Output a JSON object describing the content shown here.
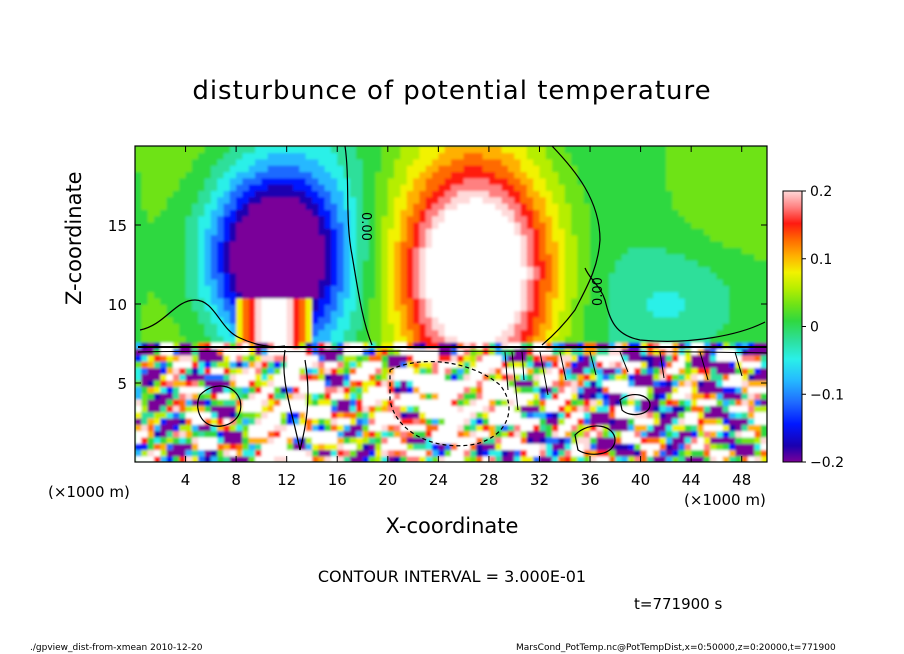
{
  "chart_data": {
    "type": "heatmap",
    "title": "disturbunce of potential temperature",
    "xlabel": "X-coordinate",
    "ylabel": "Z-coordinate",
    "x_unit_left": "(×1000 m)",
    "x_unit_right": "(×1000 m)",
    "x_ticks": [
      4,
      8,
      12,
      16,
      20,
      24,
      28,
      32,
      36,
      40,
      44,
      48
    ],
    "y_ticks": [
      5,
      10,
      15
    ],
    "xlim": [
      0,
      50
    ],
    "ylim": [
      0,
      20
    ],
    "colorbar": {
      "ticks": [
        "0.2",
        "0.1",
        "0",
        "−0.1",
        "−0.2"
      ],
      "tick_values": [
        0.2,
        0.1,
        0,
        -0.1,
        -0.2
      ],
      "range": [
        -0.2,
        0.2
      ]
    },
    "contour_labels": [
      "0.00",
      "0.00"
    ],
    "contour_interval": "CONTOUR INTERVAL = 3.000E-01",
    "time_label": "t=771900 s",
    "features": [
      {
        "kind": "cold",
        "x": 11,
        "z": 13,
        "amplitude": -0.24
      },
      {
        "kind": "warm",
        "x": 27,
        "z": 12,
        "amplitude": 0.24
      }
    ],
    "colors": [
      "#7a0099",
      "#1a00b0",
      "#0018ff",
      "#1f6bff",
      "#25b8ff",
      "#2af0e8",
      "#2ddf9a",
      "#2fd840",
      "#6ee317",
      "#b6ee00",
      "#f2f200",
      "#ffb000",
      "#ff6a00",
      "#ff1a10",
      "#ff8080",
      "#ffd9d9",
      "#ffffff"
    ]
  },
  "footer": {
    "left": "./gpview_dist-from-xmean  2010-12-20",
    "right": "MarsCond_PotTemp.nc@PotTempDist,x=0:50000,z=0:20000,t=771900"
  }
}
